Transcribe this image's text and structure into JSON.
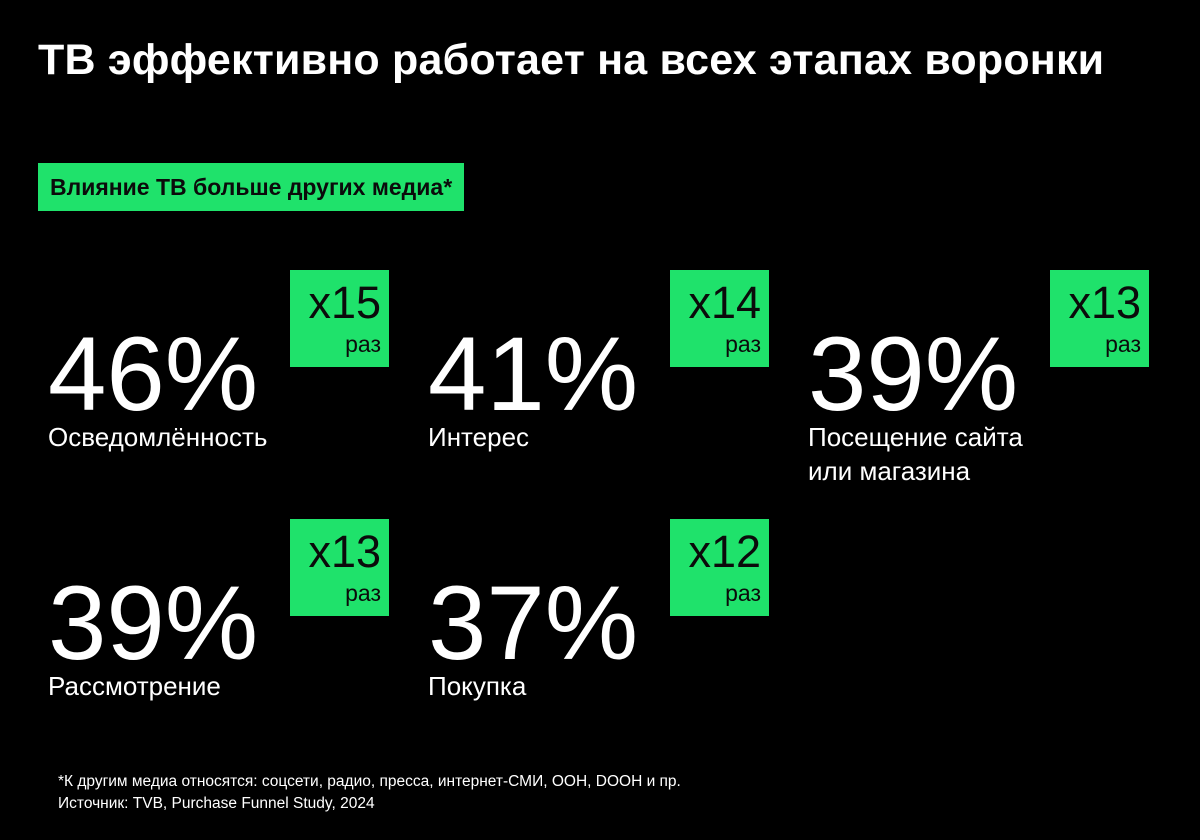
{
  "title": "ТВ эффективно работает на всех этапах воронки",
  "tag": "Влияние ТВ больше других медиа*",
  "stats": [
    {
      "percent": "46%",
      "label": "Осведомлённость",
      "multiplier": "x15",
      "unit": "раз"
    },
    {
      "percent": "41%",
      "label": "Интерес",
      "multiplier": "x14",
      "unit": "раз"
    },
    {
      "percent": "39%",
      "label": "Посещение сайта\nили магазина",
      "multiplier": "x13",
      "unit": "раз"
    },
    {
      "percent": "39%",
      "label": "Рассмотрение",
      "multiplier": "x13",
      "unit": "раз"
    },
    {
      "percent": "37%",
      "label": "Покупка",
      "multiplier": "x12",
      "unit": "раз"
    }
  ],
  "footnote": {
    "note": "*К другим медиа относятся: соцсети, радио, пресса, интернет-СМИ, OOH, DOOH и пр.",
    "source": "Источник: TVB, Purchase Funnel Study, 2024"
  },
  "colors": {
    "background": "#000000",
    "accent": "#1fe26b",
    "text": "#ffffff",
    "badge_text": "#0b0b0b"
  }
}
